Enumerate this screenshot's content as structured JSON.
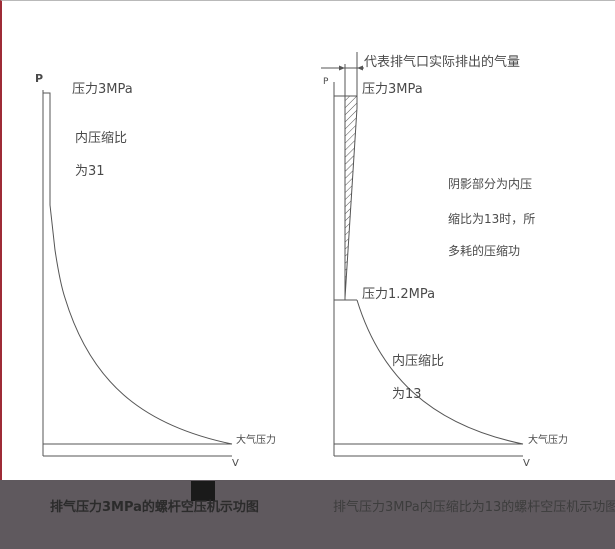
{
  "left_diagram": {
    "axis_p": "P",
    "pressure_top": "压力3MPa",
    "ratio_line1": "内压缩比",
    "ratio_line2": "为31",
    "atm": "大气压力",
    "axis_v": "V",
    "caption": "排气压力3MPa的螺杆空压机示功图"
  },
  "right_diagram": {
    "axis_p": "P",
    "exhaust_note": "代表排气口实际排出的气量",
    "pressure_top": "压力3MPa",
    "shade_line1": "阴影部分为内压",
    "shade_line2": "缩比为13时，所",
    "shade_line3": "多耗的压缩功",
    "pressure_mid": "压力1.2MPa",
    "ratio_line1": "内压缩比",
    "ratio_line2": "为13",
    "atm": "大气压力",
    "axis_v": "V",
    "caption": "排气压力3MPa内压缩比为13的螺杆空压机示功图"
  },
  "colors": {
    "line": "#555555",
    "text": "#4a4a4a",
    "band": "#5f595e"
  }
}
